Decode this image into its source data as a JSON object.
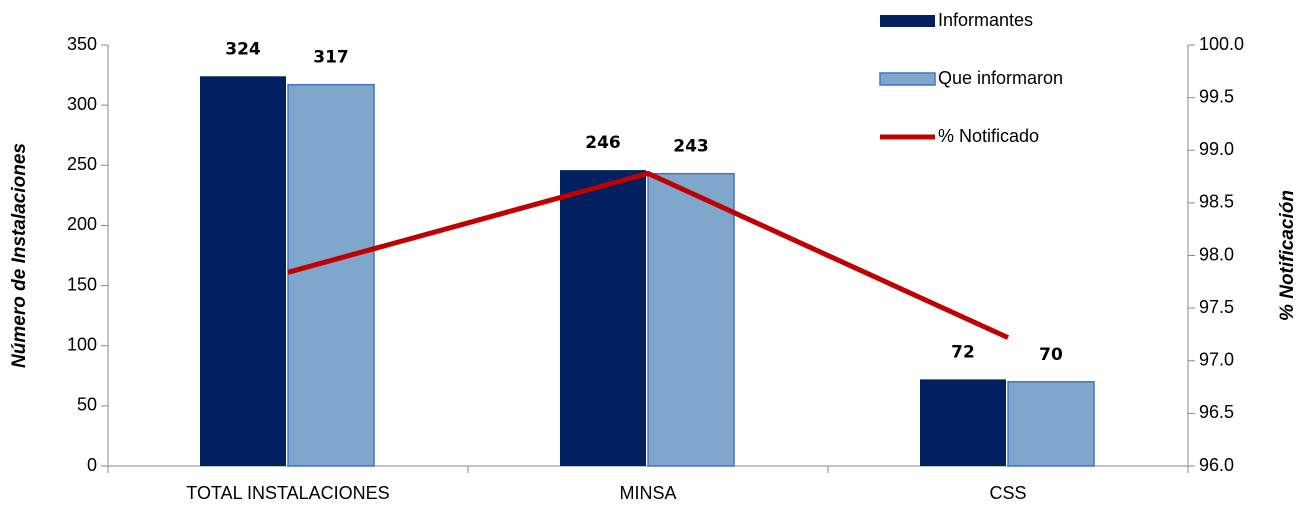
{
  "chart_data": {
    "type": "bar",
    "categories": [
      "TOTAL INSTALACIONES",
      "MINSA",
      "CSS"
    ],
    "y_label": "Número de Instalaciones",
    "y2_label": "% Notificación",
    "ylim": [
      0,
      350
    ],
    "yticks": [
      0,
      50,
      100,
      150,
      200,
      250,
      300,
      350
    ],
    "y2lim": [
      96,
      100
    ],
    "y2ticks": [
      {
        "value": 96,
        "label": "96.0"
      },
      96.5,
      {
        "value": 97,
        "label": "97.0"
      },
      97.5,
      {
        "value": 98,
        "label": "98.0"
      },
      98.5,
      {
        "value": 99,
        "label": "99.0"
      },
      99.5,
      {
        "value": 100,
        "label": "100.0"
      }
    ],
    "series": [
      {
        "name": "Informantes",
        "type": "bar",
        "color": "#002060",
        "values": [
          324,
          246,
          72
        ]
      },
      {
        "name": "Que informaron",
        "type": "bar",
        "color": "#7fa7cc",
        "values": [
          317,
          243,
          70
        ]
      },
      {
        "name": "% Notificado",
        "type": "line",
        "axis": "y2",
        "color": "#c00000",
        "values": [
          97.84,
          98.78,
          97.22
        ]
      }
    ]
  }
}
